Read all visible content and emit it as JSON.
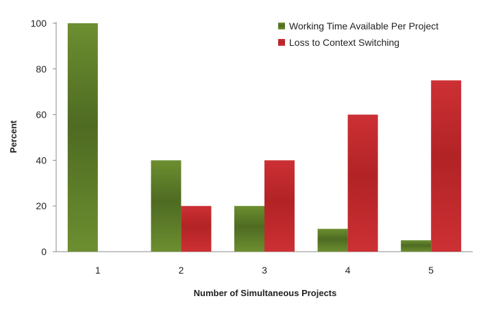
{
  "chart_data": {
    "type": "bar",
    "categories": [
      "1",
      "2",
      "3",
      "4",
      "5"
    ],
    "series": [
      {
        "name": "Working Time Available Per Project",
        "values": [
          100,
          40,
          20,
          10,
          5
        ],
        "color": "#4e6b22",
        "color_light": "#6d8e30"
      },
      {
        "name": "Loss to Context Switching",
        "values": [
          0,
          20,
          40,
          60,
          75
        ],
        "color": "#b22326",
        "color_light": "#cc3034"
      }
    ],
    "xlabel": "Number of Simultaneous Projects",
    "ylabel": "Percent",
    "ylim": [
      0,
      100
    ],
    "yticks": [
      0,
      20,
      40,
      60,
      80,
      100
    ],
    "legend_position": "top-right",
    "grid": false
  }
}
